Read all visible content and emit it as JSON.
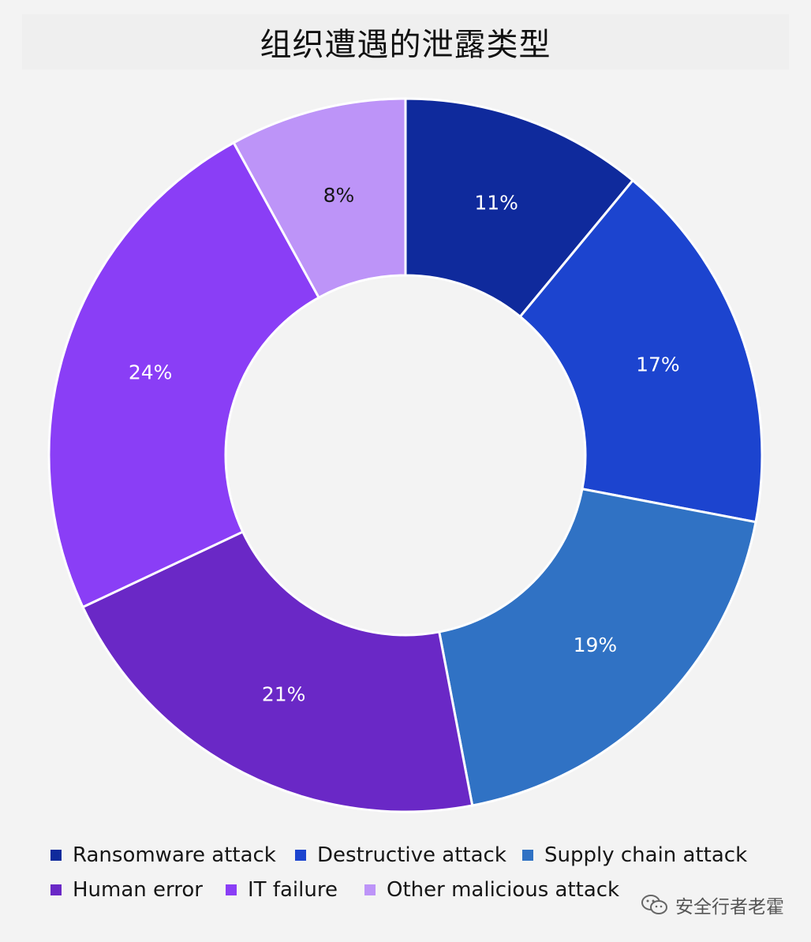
{
  "chart_data": {
    "type": "pie",
    "variant": "donut",
    "title": "组织遭遇的泄露类型",
    "categories": [
      "Ransomware attack",
      "Destructive attack",
      "Supply chain attack",
      "Human error",
      "IT failure",
      "Other malicious attack"
    ],
    "values": [
      11,
      17,
      19,
      21,
      24,
      8
    ],
    "labels": [
      "11%",
      "17%",
      "19%",
      "21%",
      "24%",
      "8%"
    ],
    "colors": [
      "#0f2a9c",
      "#1c44cf",
      "#3072c4",
      "#6a28c6",
      "#8a3ef6",
      "#bd94f8"
    ],
    "label_colors": [
      "#ffffff",
      "#ffffff",
      "#ffffff",
      "#ffffff",
      "#ffffff",
      "#161616"
    ],
    "legend_position": "bottom",
    "start": "top",
    "direction": "clockwise"
  },
  "watermark": {
    "text": "安全行者老霍",
    "icon": "wechat-icon"
  }
}
